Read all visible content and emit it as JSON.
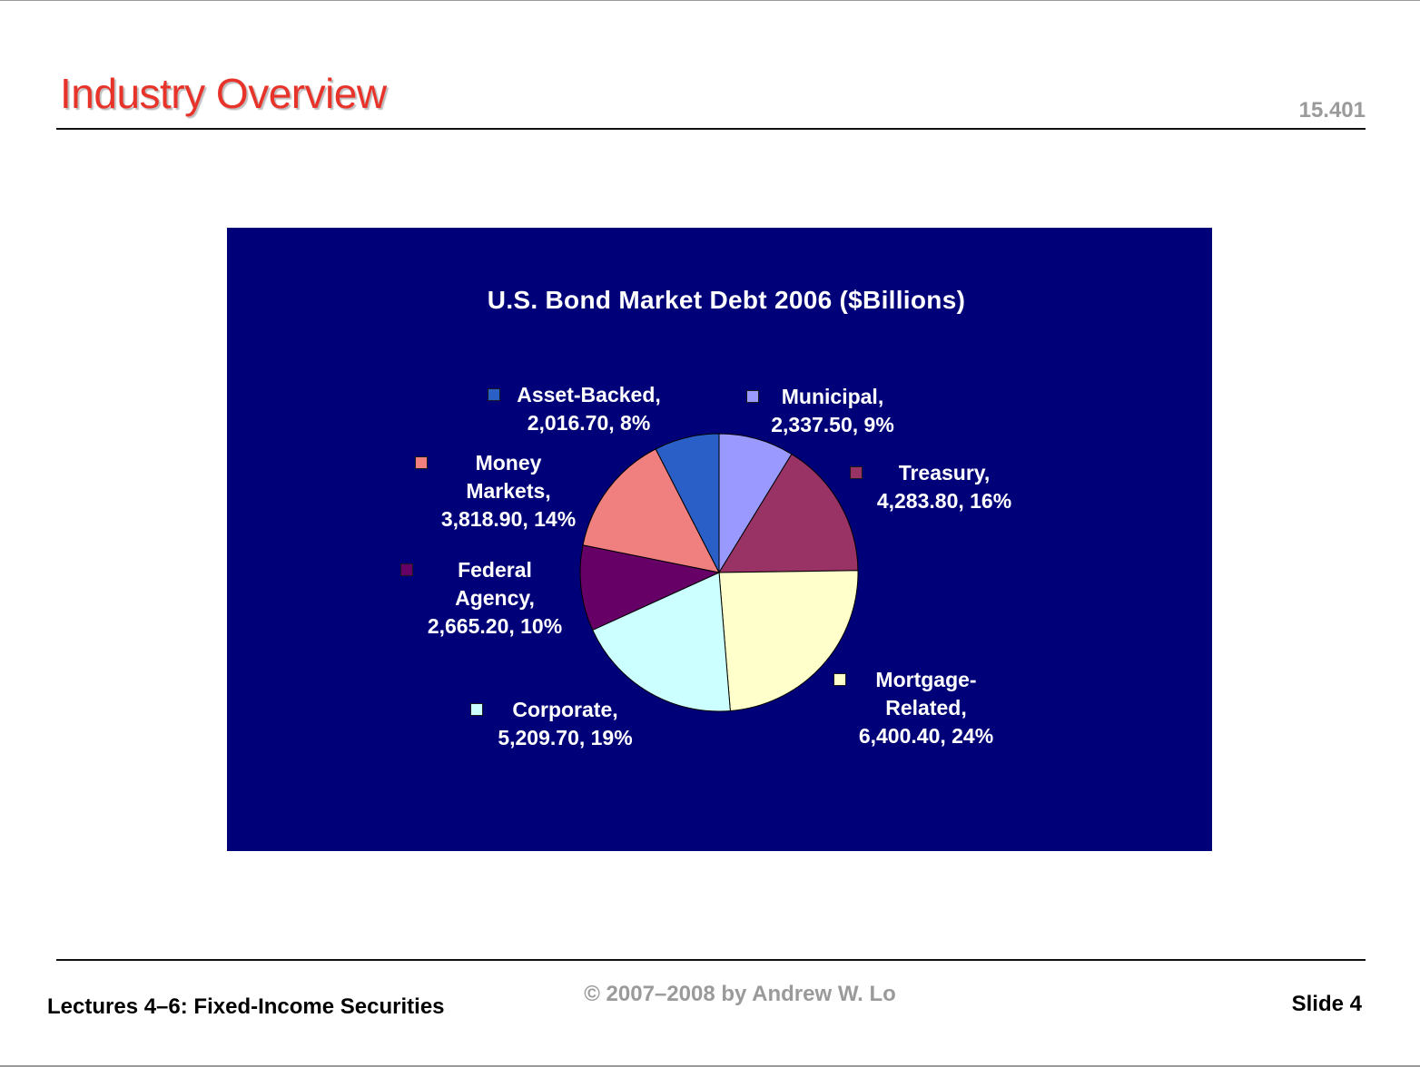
{
  "slide": {
    "title": "Industry Overview",
    "course_number": "15.401",
    "footer_left": "Lectures 4–6: Fixed-Income Securities",
    "footer_center": "© 2007–2008 by Andrew W. Lo",
    "footer_right": "Slide 4"
  },
  "chart_data": {
    "type": "pie",
    "title": "U.S. Bond Market Debt 2006 ($Billions)",
    "slices": [
      {
        "name": "Municipal",
        "value": 2337.5,
        "percent": 9,
        "color": "#9999ff",
        "line1": "Municipal,",
        "line2": "2,337.50, 9%",
        "line3": ""
      },
      {
        "name": "Treasury",
        "value": 4283.8,
        "percent": 16,
        "color": "#993366",
        "line1": "Treasury,",
        "line2": "4,283.80, 16%",
        "line3": ""
      },
      {
        "name": "Mortgage-Related",
        "value": 6400.4,
        "percent": 24,
        "color": "#ffffcc",
        "line1": "Mortgage-",
        "line2": "Related,",
        "line3": "6,400.40, 24%"
      },
      {
        "name": "Corporate",
        "value": 5209.7,
        "percent": 19,
        "color": "#ccffff",
        "line1": "Corporate,",
        "line2": "5,209.70, 19%",
        "line3": ""
      },
      {
        "name": "Federal Agency",
        "value": 2665.2,
        "percent": 10,
        "color": "#660066",
        "line1": "Federal",
        "line2": "Agency,",
        "line3": "2,665.20, 10%"
      },
      {
        "name": "Money Markets",
        "value": 3818.9,
        "percent": 14,
        "color": "#f08080",
        "line1": "Money",
        "line2": "Markets,",
        "line3": "3,818.90, 14%"
      },
      {
        "name": "Asset-Backed",
        "value": 2016.7,
        "percent": 8,
        "color": "#2b5fc8",
        "line1": "Asset-Backed,",
        "line2": "2,016.70, 8%",
        "line3": ""
      }
    ]
  }
}
